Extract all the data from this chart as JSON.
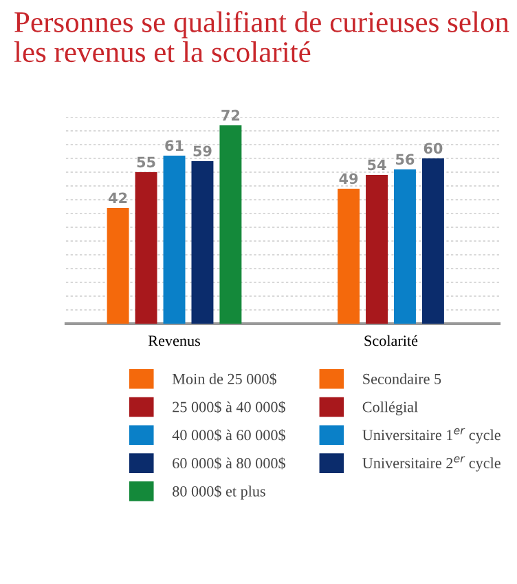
{
  "chart_data": {
    "type": "bar",
    "title": "Personnes se qualifiant de curieuses selon les revenus et la scolarité",
    "categories": [
      "Revenus",
      "Scolarité"
    ],
    "series": [
      {
        "name": "Moin de 25 000$",
        "color": "#f4690c",
        "values": [
          42,
          null
        ]
      },
      {
        "name": "25 000$ à 40 000$",
        "color": "#a8181c",
        "values": [
          55,
          null
        ]
      },
      {
        "name": "40 000$ à 60 000$",
        "color": "#0a80c8",
        "values": [
          61,
          null
        ]
      },
      {
        "name": "60 000$ à 80 000$",
        "color": "#0b2c6c",
        "values": [
          59,
          null
        ]
      },
      {
        "name": "80 000$ et plus",
        "color": "#14893a",
        "values": [
          72,
          null
        ]
      },
      {
        "name": "Secondaire 5",
        "color": "#f4690c",
        "values": [
          null,
          49
        ]
      },
      {
        "name": "Collégial",
        "color": "#a8181c",
        "values": [
          null,
          54
        ]
      },
      {
        "name": "Universitaire 1$^{er}$ cycle",
        "color": "#0a80c8",
        "values": [
          null,
          56
        ]
      },
      {
        "name": "Universitaire 2$^{er}$ cycle",
        "color": "#0b2c6c",
        "values": [
          null,
          60
        ]
      }
    ],
    "ylim": [
      0,
      75
    ],
    "yticks": [
      {
        "value": 5,
        "label": null
      },
      {
        "value": 10,
        "label": null
      },
      {
        "value": 15,
        "label": null
      },
      {
        "value": 20,
        "label": null
      },
      {
        "value": 25,
        "label": null
      },
      {
        "value": 30,
        "label": null
      },
      {
        "value": 35,
        "label": null
      },
      {
        "value": 40,
        "label": null
      },
      {
        "value": 45,
        "label": null
      },
      {
        "value": 50,
        "label": null
      },
      {
        "value": 55,
        "label": null
      },
      {
        "value": 60,
        "label": null
      },
      {
        "value": 65,
        "label": null
      },
      {
        "value": 70,
        "label": null
      },
      {
        "value": 75,
        "label": null
      }
    ],
    "grid": "y",
    "legend": "bottom",
    "data_labels": true,
    "tick_labels": "x"
  }
}
